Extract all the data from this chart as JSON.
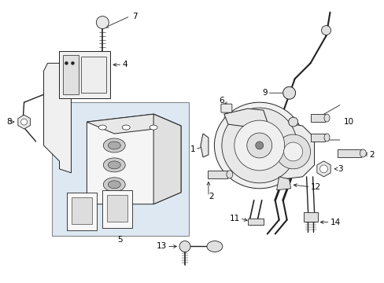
{
  "bg_color": "#ffffff",
  "lc": "#222222",
  "fc_part": "#f0f0f0",
  "fc_shaded": "#e8e8e8",
  "fc_blue": "#dce8f0",
  "figsize": [
    4.89,
    3.6
  ],
  "dpi": 100,
  "label_fs": 7.5,
  "arrow_lw": 0.6,
  "part_lw": 0.7
}
